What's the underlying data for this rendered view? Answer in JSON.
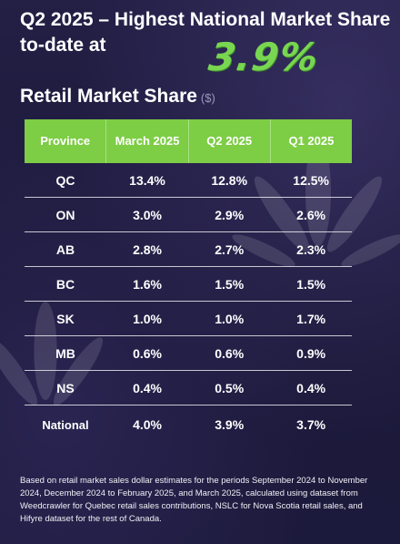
{
  "headline": {
    "text": "Q2 2025 – Highest National Market Share to-date at",
    "highlight": "3.9%",
    "highlight_color": "#78d650"
  },
  "section": {
    "title": "Retail Market Share",
    "unit": "($)"
  },
  "table": {
    "header_color": "#7dcd45",
    "columns": [
      "Province",
      "March 2025",
      "Q2 2025",
      "Q1 2025"
    ],
    "rows": [
      {
        "province": "QC",
        "march_2025": "13.4%",
        "q2_2025": "12.8%",
        "q1_2025": "12.5%"
      },
      {
        "province": "ON",
        "march_2025": "3.0%",
        "q2_2025": "2.9%",
        "q1_2025": "2.6%"
      },
      {
        "province": "AB",
        "march_2025": "2.8%",
        "q2_2025": "2.7%",
        "q1_2025": "2.3%"
      },
      {
        "province": "BC",
        "march_2025": "1.6%",
        "q2_2025": "1.5%",
        "q1_2025": "1.5%"
      },
      {
        "province": "SK",
        "march_2025": "1.0%",
        "q2_2025": "1.0%",
        "q1_2025": "1.7%"
      },
      {
        "province": "MB",
        "march_2025": "0.6%",
        "q2_2025": "0.6%",
        "q1_2025": "0.9%"
      },
      {
        "province": "NS",
        "march_2025": "0.4%",
        "q2_2025": "0.5%",
        "q1_2025": "0.4%"
      },
      {
        "province": "National",
        "march_2025": "4.0%",
        "q2_2025": "3.9%",
        "q1_2025": "3.7%"
      }
    ]
  },
  "footnote": "Based on retail market sales dollar estimates for the periods September 2024 to November 2024, December 2024 to February 2025, and March 2025, calculated using dataset from Weedcrawler for Quebec retail sales contributions, NSLC for Nova Scotia retail sales, and Hifyre dataset for the rest of Canada."
}
